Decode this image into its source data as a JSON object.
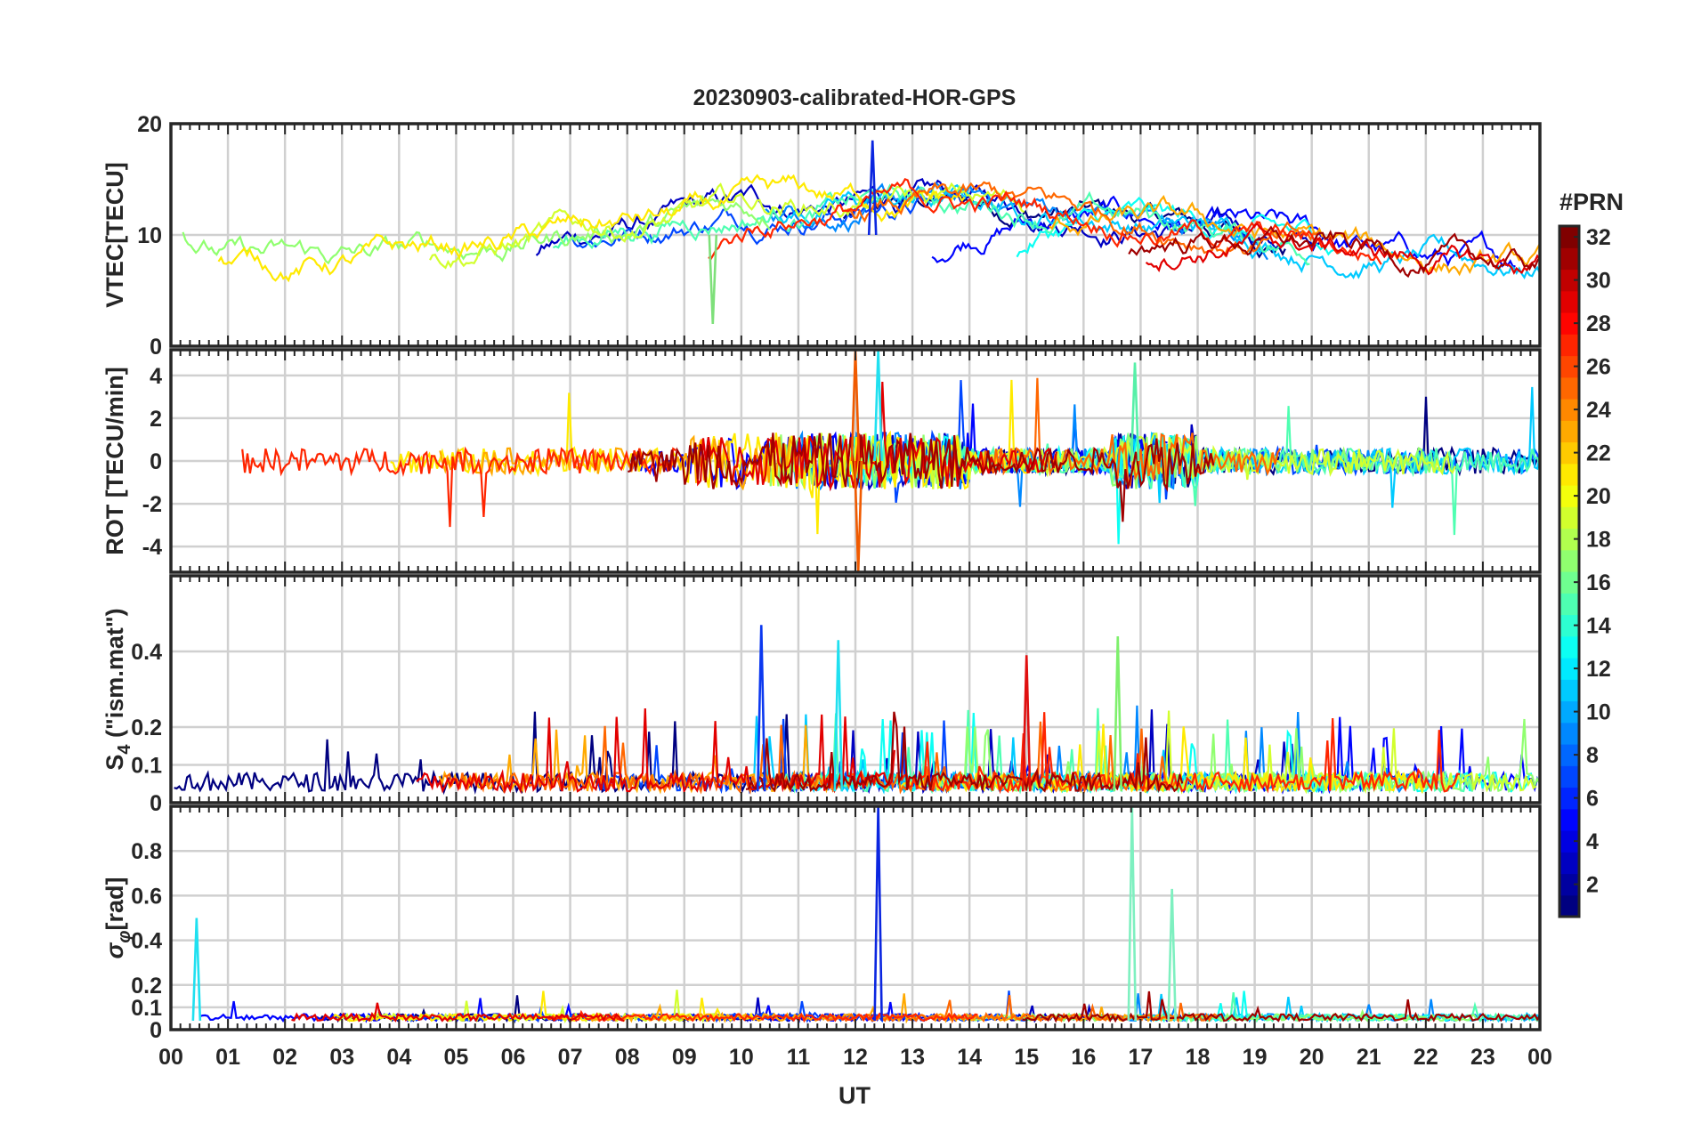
{
  "chart_data": {
    "type": "line",
    "title": "20230903-calibrated-HOR-GPS",
    "xlabel": "UT",
    "x_tick_labels": [
      "00",
      "01",
      "02",
      "03",
      "04",
      "05",
      "06",
      "07",
      "08",
      "09",
      "10",
      "11",
      "12",
      "13",
      "14",
      "15",
      "16",
      "17",
      "18",
      "19",
      "20",
      "21",
      "22",
      "23",
      "00"
    ],
    "xlim": [
      0,
      24
    ],
    "colorbar": {
      "label": "#PRN",
      "range": [
        1,
        32
      ],
      "tick_labels": [
        "32",
        "30",
        "28",
        "26",
        "24",
        "22",
        "20",
        "18",
        "16",
        "14",
        "12",
        "10",
        "8",
        "6",
        "4",
        "2"
      ],
      "colormap": "jet"
    },
    "panels": [
      {
        "id": "vtec",
        "ylabel": "VTEC[TECU]",
        "ylim": [
          0,
          20
        ],
        "ytick_labels": [
          "20",
          "10",
          "0"
        ],
        "baseline": 10,
        "noise": 1.2,
        "series_level": "TEC values mostly 5 to 16 TECU, peaks near 18 at 12 UT"
      },
      {
        "id": "rot",
        "ylabel": "ROT [TECU/min]",
        "ylim": [
          -5.2,
          5.2
        ],
        "ytick_labels": [
          "4",
          "2",
          "0",
          "-2",
          "-4"
        ],
        "baseline": 0,
        "noise": 0.6,
        "series_level": "ROT fluctuating around 0, spikes to +/-5 near 12 UT"
      },
      {
        "id": "s4",
        "ylabel_main": "S",
        "ylabel_sub": "4",
        "ylabel_rest": " (\"ism.mat\")",
        "ylim": [
          0,
          0.6
        ],
        "ytick_labels": [
          "0.4",
          "0.2",
          "0.1",
          "0"
        ],
        "baseline": 0.03,
        "noise": 0.05,
        "series_level": "S4 mostly below 0.2, peaks up to 0.47 near 10.3 UT"
      },
      {
        "id": "sigma",
        "ylabel_main": "σ",
        "ylabel_sub": "φ",
        "ylabel_rest": "[rad]",
        "ylim": [
          0,
          1.0
        ],
        "ytick_labels": [
          "0.8",
          "0.6",
          "0.4",
          "0.2",
          "0.1",
          "0"
        ],
        "baseline": 0.04,
        "noise": 0.03,
        "series_level": "sigma phi mostly below 0.1, spikes to 1.0 near 12.4 UT and 16.8 UT"
      }
    ],
    "annotations": []
  }
}
